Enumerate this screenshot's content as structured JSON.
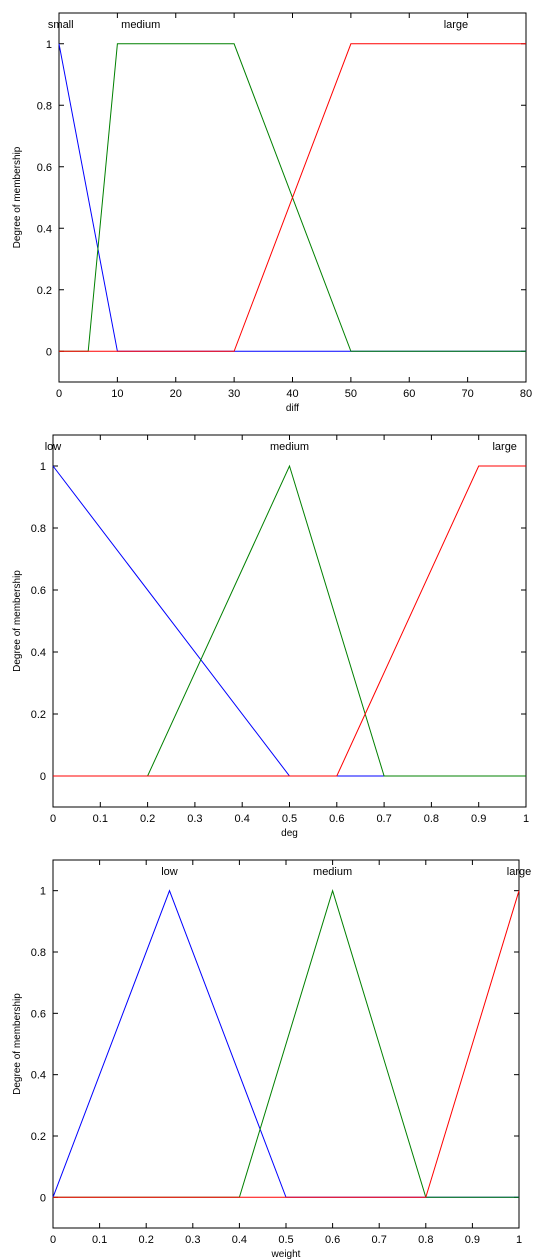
{
  "chart_data": [
    {
      "type": "line",
      "xlabel": "diff",
      "ylabel": "Degree of membership",
      "xlim": [
        0,
        80
      ],
      "ylim": [
        -0.1,
        1.1
      ],
      "xticks": [
        "0",
        "10",
        "20",
        "30",
        "40",
        "50",
        "60",
        "70",
        "80"
      ],
      "yticks": [
        "0",
        "0.2",
        "0.4",
        "0.6",
        "0.8",
        "1"
      ],
      "colors": {
        "small": "#0000ff",
        "medium": "#008000",
        "large": "#ff0000"
      },
      "series": [
        {
          "name": "small",
          "x": [
            0,
            0,
            10,
            80
          ],
          "y": [
            1,
            1,
            0,
            0
          ]
        },
        {
          "name": "medium",
          "x": [
            0,
            5,
            10,
            30,
            50,
            80
          ],
          "y": [
            0,
            0,
            1,
            1,
            0,
            0
          ]
        },
        {
          "name": "large",
          "x": [
            0,
            30,
            50,
            80
          ],
          "y": [
            0,
            0,
            1,
            1
          ]
        }
      ]
    },
    {
      "type": "line",
      "xlabel": "deg",
      "ylabel": "Degree of membership",
      "xlim": [
        0,
        1
      ],
      "ylim": [
        -0.1,
        1.1
      ],
      "xticks": [
        "0",
        "0.1",
        "0.2",
        "0.3",
        "0.4",
        "0.5",
        "0.6",
        "0.7",
        "0.8",
        "0.9",
        "1"
      ],
      "yticks": [
        "0",
        "0.2",
        "0.4",
        "0.6",
        "0.8",
        "1"
      ],
      "colors": {
        "low": "#0000ff",
        "medium": "#008000",
        "large": "#ff0000"
      },
      "series": [
        {
          "name": "low",
          "x": [
            0,
            0.5,
            1
          ],
          "y": [
            1,
            0,
            0
          ]
        },
        {
          "name": "medium",
          "x": [
            0,
            0.2,
            0.5,
            0.7,
            1
          ],
          "y": [
            0,
            0,
            1,
            0,
            0
          ]
        },
        {
          "name": "large",
          "x": [
            0,
            0.6,
            0.9,
            1
          ],
          "y": [
            0,
            0,
            1,
            1
          ]
        }
      ]
    },
    {
      "type": "line",
      "xlabel": "weight",
      "ylabel": "Degree of membership",
      "xlim": [
        0,
        1
      ],
      "ylim": [
        -0.1,
        1.1
      ],
      "xticks": [
        "0",
        "0.1",
        "0.2",
        "0.3",
        "0.4",
        "0.5",
        "0.6",
        "0.7",
        "0.8",
        "0.9",
        "1"
      ],
      "yticks": [
        "0",
        "0.2",
        "0.4",
        "0.6",
        "0.8",
        "1"
      ],
      "colors": {
        "low": "#0000ff",
        "medium": "#008000",
        "large": "#ff0000"
      },
      "series": [
        {
          "name": "low",
          "x": [
            0,
            0.25,
            0.5,
            1
          ],
          "y": [
            0,
            1,
            0,
            0
          ]
        },
        {
          "name": "medium",
          "x": [
            0,
            0.4,
            0.6,
            0.8,
            1
          ],
          "y": [
            0,
            0,
            1,
            0,
            0
          ]
        },
        {
          "name": "large",
          "x": [
            0,
            0.8,
            1
          ],
          "y": [
            0,
            0,
            1
          ]
        }
      ]
    }
  ]
}
